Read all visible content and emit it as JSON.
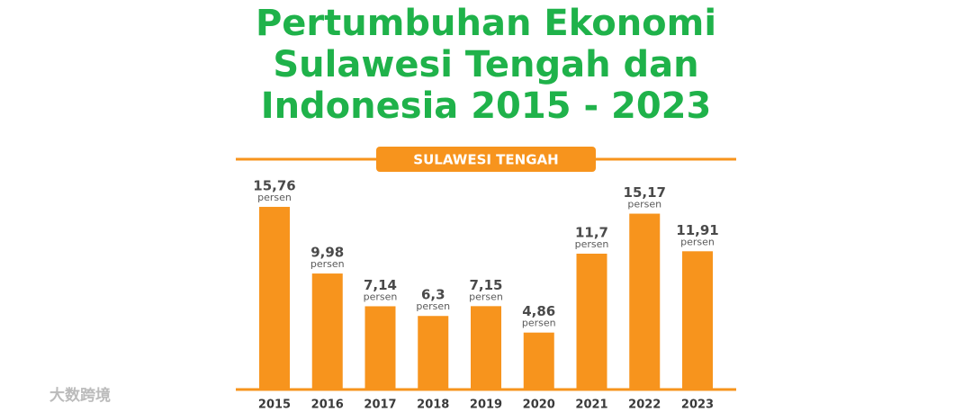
{
  "chart_data": {
    "type": "bar",
    "title": [
      "Pertumbuhan Ekonomi",
      "Sulawesi Tengah dan",
      "Indonesia 2015 - 2023"
    ],
    "section_label": "SULAWESI TENGAH",
    "categories": [
      "2015",
      "2016",
      "2017",
      "2018",
      "2019",
      "2020",
      "2021",
      "2022",
      "2023"
    ],
    "values": [
      15.76,
      9.98,
      7.14,
      6.3,
      7.15,
      4.86,
      11.7,
      15.17,
      11.91
    ],
    "value_labels": [
      "15,76",
      "9,98",
      "7,14",
      "6,3",
      "7,15",
      "4,86",
      "11,7",
      "15,17",
      "11,91"
    ],
    "unit_label": "persen",
    "color": "#f7941d",
    "title_color": "#1fb24a",
    "watermark": "大数跨境"
  }
}
